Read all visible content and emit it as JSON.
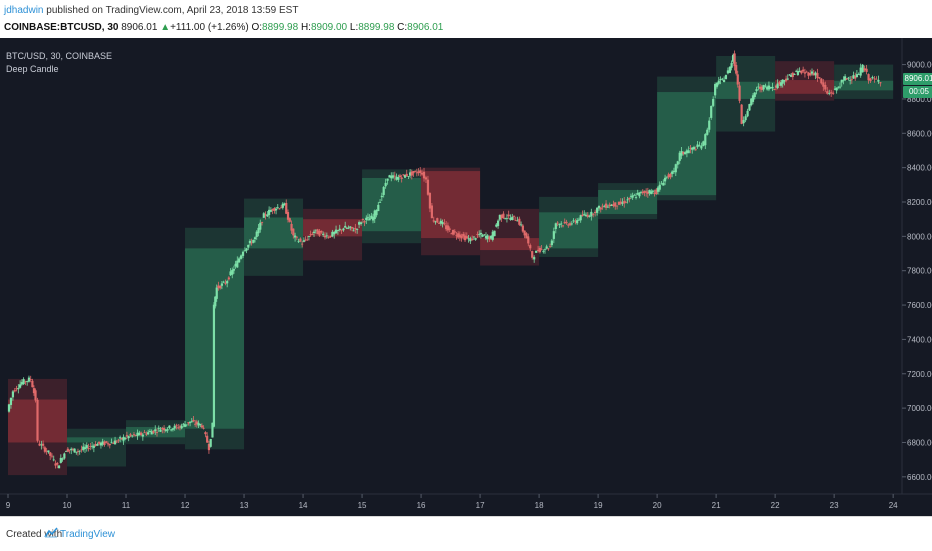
{
  "header": {
    "author": "jdhadwin",
    "published": " published on TradingView.com, April 23, 2018 13:59 EST",
    "symbol": "COINBASE:BTCUSD, 30",
    "last": "8906.01",
    "change_arrow": "▲",
    "change": "+111.00 (+1.26%)",
    "o_label": "O:",
    "o_value": "8899.98",
    "h_label": "H:",
    "h_value": "8909.00",
    "l_label": "L:",
    "l_value": "8899.98",
    "c_label": "C:",
    "c_value": "8906.01"
  },
  "legend": {
    "line1": "BTC/USD, 30, COINBASE",
    "line2": "Deep Candle"
  },
  "price_tags": {
    "last": "8906.01",
    "timer": "00:05"
  },
  "footer": {
    "created": "Created with",
    "brand": "TradingView"
  },
  "colors": {
    "background": "#151924",
    "up_box": "#2e7d5b",
    "down_box": "#a0343c",
    "up_candle": "#7de0a8",
    "down_candle": "#e06a6a",
    "axis_text": "#b6bac4"
  },
  "chart_data": {
    "type": "candlestick",
    "x_axis": {
      "ticks": [
        "9",
        "10",
        "11",
        "12",
        "13",
        "14",
        "15",
        "16",
        "17",
        "18",
        "19",
        "20",
        "21",
        "22",
        "23",
        "24"
      ],
      "range": [
        9,
        24.15
      ]
    },
    "y_axis": {
      "ticks": [
        "6600.00",
        "6800.00",
        "7000.00",
        "7200.00",
        "7400.00",
        "7600.00",
        "7800.00",
        "8000.00",
        "8200.00",
        "8400.00",
        "8600.00",
        "8800.00",
        "9000.00"
      ],
      "range": [
        6500,
        9050
      ]
    },
    "daily_boxes": [
      {
        "day": 9,
        "open": 7050,
        "high": 7170,
        "low": 6610,
        "close": 6800
      },
      {
        "day": 10,
        "open": 6800,
        "high": 6880,
        "low": 6660,
        "close": 6830
      },
      {
        "day": 11,
        "open": 6830,
        "high": 6930,
        "low": 6790,
        "close": 6890
      },
      {
        "day": 12,
        "open": 6880,
        "high": 8050,
        "low": 6760,
        "close": 7930
      },
      {
        "day": 13,
        "open": 7930,
        "high": 8220,
        "low": 7770,
        "close": 8110
      },
      {
        "day": 14,
        "open": 8100,
        "high": 8160,
        "low": 7860,
        "close": 8000
      },
      {
        "day": 15,
        "open": 8030,
        "high": 8390,
        "low": 7960,
        "close": 8340
      },
      {
        "day": 16,
        "open": 8380,
        "high": 8400,
        "low": 7890,
        "close": 7990
      },
      {
        "day": 17,
        "open": 7990,
        "high": 8160,
        "low": 7830,
        "close": 7920
      },
      {
        "day": 18,
        "open": 7930,
        "high": 8230,
        "low": 7880,
        "close": 8140
      },
      {
        "day": 19,
        "open": 8130,
        "high": 8310,
        "low": 8100,
        "close": 8270
      },
      {
        "day": 20,
        "open": 8240,
        "high": 8930,
        "low": 8210,
        "close": 8840
      },
      {
        "day": 21,
        "open": 8800,
        "high": 9050,
        "low": 8610,
        "close": 8900
      },
      {
        "day": 22,
        "open": 8910,
        "high": 9020,
        "low": 8790,
        "close": 8830
      },
      {
        "day": 23,
        "open": 8850,
        "high": 9000,
        "low": 8800,
        "close": 8906
      }
    ],
    "path_points": [
      [
        9,
        6980
      ],
      [
        9.1,
        7100
      ],
      [
        9.25,
        7150
      ],
      [
        9.4,
        7170
      ],
      [
        9.48,
        7050
      ],
      [
        9.52,
        6800
      ],
      [
        9.7,
        6740
      ],
      [
        9.85,
        6660
      ],
      [
        10,
        6760
      ],
      [
        10.2,
        6750
      ],
      [
        10.5,
        6790
      ],
      [
        10.8,
        6800
      ],
      [
        11,
        6830
      ],
      [
        11.3,
        6850
      ],
      [
        11.6,
        6880
      ],
      [
        11.9,
        6890
      ],
      [
        12.1,
        6920
      ],
      [
        12.3,
        6900
      ],
      [
        12.42,
        6770
      ],
      [
        12.48,
        6900
      ],
      [
        12.5,
        7600
      ],
      [
        12.55,
        7700
      ],
      [
        12.7,
        7730
      ],
      [
        12.9,
        7850
      ],
      [
        13,
        7920
      ],
      [
        13.2,
        7990
      ],
      [
        13.35,
        8120
      ],
      [
        13.5,
        8160
      ],
      [
        13.7,
        8180
      ],
      [
        13.85,
        8000
      ],
      [
        14,
        7960
      ],
      [
        14.2,
        8030
      ],
      [
        14.45,
        8000
      ],
      [
        14.7,
        8050
      ],
      [
        14.9,
        8040
      ],
      [
        15,
        8090
      ],
      [
        15.2,
        8110
      ],
      [
        15.35,
        8240
      ],
      [
        15.45,
        8350
      ],
      [
        15.6,
        8340
      ],
      [
        15.8,
        8360
      ],
      [
        16,
        8380
      ],
      [
        16.1,
        8330
      ],
      [
        16.2,
        8100
      ],
      [
        16.35,
        8080
      ],
      [
        16.5,
        8030
      ],
      [
        16.7,
        8000
      ],
      [
        16.85,
        7980
      ],
      [
        17,
        8010
      ],
      [
        17.2,
        7990
      ],
      [
        17.35,
        8120
      ],
      [
        17.5,
        8110
      ],
      [
        17.65,
        8100
      ],
      [
        17.8,
        7990
      ],
      [
        17.9,
        7880
      ],
      [
        18,
        7920
      ],
      [
        18.2,
        7940
      ],
      [
        18.3,
        8080
      ],
      [
        18.45,
        8070
      ],
      [
        18.6,
        8080
      ],
      [
        18.75,
        8120
      ],
      [
        18.9,
        8130
      ],
      [
        19,
        8160
      ],
      [
        19.15,
        8180
      ],
      [
        19.4,
        8190
      ],
      [
        19.6,
        8230
      ],
      [
        19.8,
        8260
      ],
      [
        20,
        8260
      ],
      [
        20.15,
        8340
      ],
      [
        20.3,
        8370
      ],
      [
        20.4,
        8480
      ],
      [
        20.55,
        8500
      ],
      [
        20.7,
        8520
      ],
      [
        20.8,
        8540
      ],
      [
        20.9,
        8680
      ],
      [
        21,
        8880
      ],
      [
        21.15,
        8920
      ],
      [
        21.25,
        8980
      ],
      [
        21.3,
        9060
      ],
      [
        21.38,
        8890
      ],
      [
        21.45,
        8660
      ],
      [
        21.55,
        8740
      ],
      [
        21.7,
        8860
      ],
      [
        21.85,
        8870
      ],
      [
        22,
        8870
      ],
      [
        22.2,
        8920
      ],
      [
        22.4,
        8960
      ],
      [
        22.55,
        8950
      ],
      [
        22.7,
        8950
      ],
      [
        22.8,
        8890
      ],
      [
        22.9,
        8830
      ],
      [
        23,
        8840
      ],
      [
        23.2,
        8920
      ],
      [
        23.4,
        8930
      ],
      [
        23.5,
        8990
      ],
      [
        23.6,
        8920
      ],
      [
        23.7,
        8910
      ],
      [
        23.8,
        8906
      ]
    ]
  }
}
